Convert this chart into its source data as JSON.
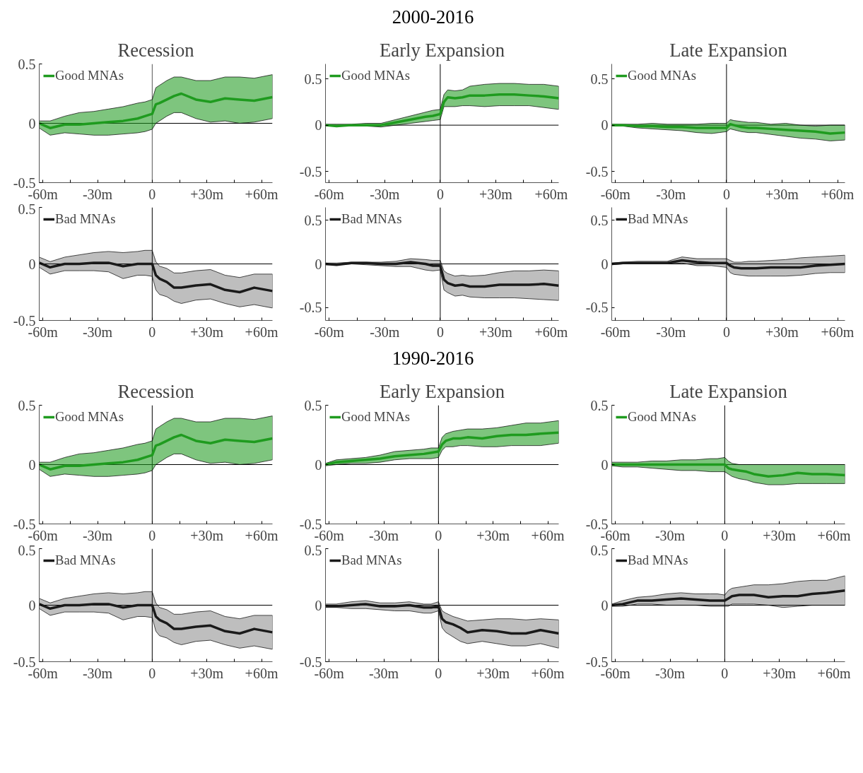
{
  "chart_data": [
    {
      "type": "line",
      "title": "Recession",
      "annotations": [
        "2000-2016"
      ],
      "x": [
        -62,
        -56,
        -48,
        -40,
        -32,
        -24,
        -16,
        -8,
        -4,
        0,
        2,
        4,
        8,
        12,
        16,
        24,
        32,
        40,
        48,
        56,
        66
      ],
      "xlim": [
        -62,
        66
      ],
      "ylim": [
        -0.5,
        0.5
      ],
      "xticks": [
        {
          "value": -60,
          "label": "-60m"
        },
        {
          "value": -45,
          "label": null
        },
        {
          "value": -30,
          "label": "-30m"
        },
        {
          "value": -15,
          "label": null
        },
        {
          "value": 0,
          "label": "0"
        },
        {
          "value": 15,
          "label": null
        },
        {
          "value": 30,
          "label": "+30m"
        },
        {
          "value": 45,
          "label": null
        },
        {
          "value": 60,
          "label": "+60m"
        }
      ],
      "yticks": [
        -0.5,
        0,
        0.5
      ],
      "grid": false,
      "legend": "top left",
      "ref_lines": [
        {
          "axis": "x",
          "value": 0,
          "color": "#555555"
        },
        {
          "axis": "y",
          "value": 0,
          "color": "#000000"
        }
      ],
      "series": [
        {
          "name": "Good MNAs",
          "color": "#1f9b1f",
          "values": [
            0,
            -0.04,
            -0.01,
            -0.01,
            0,
            0.01,
            0.02,
            0.04,
            0.06,
            0.08,
            0.16,
            0.17,
            0.2,
            0.23,
            0.25,
            0.2,
            0.18,
            0.21,
            0.2,
            0.19,
            0.22
          ],
          "lower": [
            -0.04,
            -0.1,
            -0.08,
            -0.09,
            -0.1,
            -0.1,
            -0.09,
            -0.08,
            -0.07,
            -0.05,
            0,
            0.02,
            0.06,
            0.09,
            0.09,
            0.04,
            0.01,
            0.02,
            0,
            0.01,
            0.04
          ],
          "upper": [
            0.02,
            0.02,
            0.06,
            0.09,
            0.1,
            0.12,
            0.14,
            0.17,
            0.18,
            0.2,
            0.3,
            0.32,
            0.36,
            0.39,
            0.39,
            0.36,
            0.36,
            0.39,
            0.39,
            0.38,
            0.41
          ]
        }
      ]
    },
    {
      "type": "line",
      "title": "Early Expansion",
      "x": [
        -62,
        -56,
        -48,
        -40,
        -32,
        -24,
        -16,
        -8,
        -4,
        0,
        2,
        4,
        8,
        12,
        16,
        24,
        32,
        40,
        48,
        56,
        64
      ],
      "xlim": [
        -62,
        64
      ],
      "ylim": [
        -0.62,
        0.66
      ],
      "xticks": [
        {
          "value": -60,
          "label": "-60m"
        },
        {
          "value": -45,
          "label": null
        },
        {
          "value": -30,
          "label": "-30m"
        },
        {
          "value": -15,
          "label": null
        },
        {
          "value": 0,
          "label": "0"
        },
        {
          "value": 15,
          "label": null
        },
        {
          "value": 30,
          "label": "+30m"
        },
        {
          "value": 45,
          "label": null
        },
        {
          "value": 60,
          "label": "+60m"
        }
      ],
      "yticks": [
        -0.5,
        0,
        0.5
      ],
      "grid": false,
      "legend": "top left",
      "ref_lines": [
        {
          "axis": "x",
          "value": 0
        },
        {
          "axis": "y",
          "value": 0
        }
      ],
      "series": [
        {
          "name": "Good MNAs",
          "color": "#1f9b1f",
          "values": [
            0,
            -0.01,
            0,
            0,
            0,
            0.03,
            0.06,
            0.09,
            0.1,
            0.12,
            0.25,
            0.3,
            0.29,
            0.3,
            0.32,
            0.32,
            0.33,
            0.33,
            0.32,
            0.31,
            0.29
          ],
          "lower": [
            -0.01,
            -0.01,
            -0.01,
            -0.01,
            -0.02,
            0,
            0.02,
            0.04,
            0.05,
            0.06,
            0.2,
            0.2,
            0.2,
            0.21,
            0.21,
            0.2,
            0.21,
            0.21,
            0.21,
            0.19,
            0.17
          ],
          "upper": [
            0.01,
            0.01,
            0.01,
            0.02,
            0.02,
            0.06,
            0.1,
            0.14,
            0.16,
            0.17,
            0.33,
            0.38,
            0.37,
            0.38,
            0.42,
            0.44,
            0.45,
            0.45,
            0.44,
            0.44,
            0.42
          ]
        }
      ]
    },
    {
      "type": "line",
      "title": "Late Expansion",
      "x": [
        -62,
        -56,
        -48,
        -40,
        -32,
        -24,
        -16,
        -8,
        -4,
        0,
        2,
        4,
        8,
        12,
        16,
        24,
        32,
        40,
        48,
        56,
        64
      ],
      "xlim": [
        -62,
        64
      ],
      "ylim": [
        -0.62,
        0.66
      ],
      "xticks": [
        {
          "value": -60,
          "label": "-60m"
        },
        {
          "value": -45,
          "label": null
        },
        {
          "value": -30,
          "label": "-30m"
        },
        {
          "value": -15,
          "label": null
        },
        {
          "value": 0,
          "label": "0"
        },
        {
          "value": 15,
          "label": null
        },
        {
          "value": 30,
          "label": "+30m"
        },
        {
          "value": 45,
          "label": null
        },
        {
          "value": 60,
          "label": "+60m"
        }
      ],
      "yticks": [
        -0.5,
        0,
        0.5
      ],
      "grid": false,
      "legend": "top left",
      "ref_lines": [
        {
          "axis": "x",
          "value": 0
        },
        {
          "axis": "y",
          "value": 0
        }
      ],
      "series": [
        {
          "name": "Good MNAs",
          "color": "#1f9b1f",
          "values": [
            0,
            0,
            -0.01,
            -0.01,
            -0.02,
            -0.02,
            -0.03,
            -0.03,
            -0.03,
            -0.03,
            0.01,
            0,
            -0.02,
            -0.03,
            -0.03,
            -0.04,
            -0.05,
            -0.06,
            -0.07,
            -0.09,
            -0.08
          ],
          "lower": [
            -0.01,
            -0.01,
            -0.03,
            -0.04,
            -0.05,
            -0.06,
            -0.08,
            -0.09,
            -0.08,
            -0.07,
            -0.04,
            -0.05,
            -0.07,
            -0.08,
            -0.08,
            -0.1,
            -0.12,
            -0.14,
            -0.15,
            -0.17,
            -0.16
          ],
          "upper": [
            0.01,
            0.01,
            0.01,
            0.02,
            0.01,
            0.01,
            0.01,
            0.02,
            0.02,
            0.02,
            0.06,
            0.05,
            0.04,
            0.03,
            0.03,
            0.01,
            0.02,
            0,
            -0.01,
            0,
            0
          ]
        }
      ]
    },
    {
      "type": "line",
      "x": [
        -62,
        -56,
        -48,
        -40,
        -32,
        -24,
        -16,
        -8,
        -4,
        0,
        2,
        4,
        8,
        12,
        16,
        24,
        32,
        40,
        48,
        56,
        66
      ],
      "xlim": [
        -62,
        66
      ],
      "ylim": [
        -0.5,
        0.5
      ],
      "xticks": [
        {
          "value": -60,
          "label": "-60m"
        },
        {
          "value": -45,
          "label": null
        },
        {
          "value": -30,
          "label": "-30m"
        },
        {
          "value": -15,
          "label": null
        },
        {
          "value": 0,
          "label": "0"
        },
        {
          "value": 15,
          "label": null
        },
        {
          "value": 30,
          "label": "+30m"
        },
        {
          "value": 45,
          "label": null
        },
        {
          "value": 60,
          "label": "+60m"
        }
      ],
      "yticks": [
        -0.5,
        0,
        0.5
      ],
      "grid": false,
      "legend": "top left",
      "ref_lines": [
        {
          "axis": "x",
          "value": 0
        },
        {
          "axis": "y",
          "value": 0
        }
      ],
      "series": [
        {
          "name": "Bad MNAs",
          "color": "#1a1a1a",
          "values": [
            0.01,
            -0.03,
            0,
            0,
            0.01,
            0.01,
            -0.02,
            0,
            0,
            0,
            -0.1,
            -0.13,
            -0.16,
            -0.21,
            -0.21,
            -0.19,
            -0.18,
            -0.23,
            -0.25,
            -0.21,
            -0.24
          ],
          "lower": [
            -0.03,
            -0.09,
            -0.06,
            -0.06,
            -0.06,
            -0.07,
            -0.13,
            -0.1,
            -0.1,
            -0.11,
            -0.23,
            -0.27,
            -0.29,
            -0.33,
            -0.35,
            -0.32,
            -0.31,
            -0.35,
            -0.38,
            -0.36,
            -0.39
          ],
          "upper": [
            0.06,
            0.02,
            0.06,
            0.08,
            0.1,
            0.11,
            0.1,
            0.11,
            0.12,
            0.12,
            0.02,
            -0.02,
            -0.04,
            -0.08,
            -0.08,
            -0.06,
            -0.05,
            -0.1,
            -0.12,
            -0.09,
            -0.09
          ]
        }
      ]
    },
    {
      "type": "line",
      "x": [
        -62,
        -56,
        -48,
        -40,
        -32,
        -24,
        -16,
        -8,
        -4,
        0,
        2,
        4,
        8,
        12,
        16,
        24,
        32,
        40,
        48,
        56,
        64
      ],
      "xlim": [
        -62,
        64
      ],
      "ylim": [
        -0.65,
        0.65
      ],
      "xticks": [
        {
          "value": -60,
          "label": "-60m"
        },
        {
          "value": -45,
          "label": null
        },
        {
          "value": -30,
          "label": "-30m"
        },
        {
          "value": -15,
          "label": null
        },
        {
          "value": 0,
          "label": "0"
        },
        {
          "value": 15,
          "label": null
        },
        {
          "value": 30,
          "label": "+30m"
        },
        {
          "value": 45,
          "label": null
        },
        {
          "value": 60,
          "label": "+60m"
        }
      ],
      "yticks": [
        -0.5,
        0,
        0.5
      ],
      "grid": false,
      "legend": "top left",
      "ref_lines": [
        {
          "axis": "x",
          "value": 0
        },
        {
          "axis": "y",
          "value": 0
        }
      ],
      "series": [
        {
          "name": "Bad MNAs",
          "color": "#1a1a1a",
          "values": [
            0,
            -0.01,
            0.01,
            0.01,
            0,
            0,
            0.02,
            0,
            -0.02,
            -0.02,
            -0.18,
            -0.22,
            -0.25,
            -0.24,
            -0.26,
            -0.26,
            -0.24,
            -0.24,
            -0.24,
            -0.23,
            -0.25
          ],
          "lower": [
            -0.01,
            -0.01,
            0,
            -0.01,
            -0.02,
            -0.03,
            -0.03,
            -0.07,
            -0.08,
            -0.07,
            -0.3,
            -0.33,
            -0.37,
            -0.36,
            -0.38,
            -0.39,
            -0.39,
            -0.39,
            -0.4,
            -0.41,
            -0.42
          ],
          "upper": [
            0.01,
            0.01,
            0.02,
            0.02,
            0.02,
            0.03,
            0.06,
            0.05,
            0.04,
            0.04,
            -0.08,
            -0.11,
            -0.14,
            -0.13,
            -0.14,
            -0.13,
            -0.1,
            -0.08,
            -0.08,
            -0.07,
            -0.08
          ]
        }
      ]
    },
    {
      "type": "line",
      "x": [
        -62,
        -56,
        -48,
        -40,
        -32,
        -24,
        -16,
        -8,
        -4,
        0,
        2,
        4,
        8,
        12,
        16,
        24,
        32,
        40,
        48,
        56,
        64
      ],
      "xlim": [
        -62,
        64
      ],
      "ylim": [
        -0.65,
        0.65
      ],
      "xticks": [
        {
          "value": -60,
          "label": "-60m"
        },
        {
          "value": -45,
          "label": null
        },
        {
          "value": -30,
          "label": "-30m"
        },
        {
          "value": -15,
          "label": null
        },
        {
          "value": 0,
          "label": "0"
        },
        {
          "value": 15,
          "label": null
        },
        {
          "value": 30,
          "label": "+30m"
        },
        {
          "value": 45,
          "label": null
        },
        {
          "value": 60,
          "label": "+60m"
        }
      ],
      "yticks": [
        -0.5,
        0,
        0.5
      ],
      "grid": false,
      "legend": "top left",
      "ref_lines": [
        {
          "axis": "x",
          "value": 0
        },
        {
          "axis": "y",
          "value": 0
        }
      ],
      "series": [
        {
          "name": "Bad MNAs",
          "color": "#1a1a1a",
          "values": [
            0,
            0.01,
            0.01,
            0.01,
            0.01,
            0.04,
            0.02,
            0.01,
            0.01,
            0.01,
            -0.02,
            -0.04,
            -0.05,
            -0.05,
            -0.05,
            -0.04,
            -0.04,
            -0.04,
            -0.02,
            -0.01,
            0
          ],
          "lower": [
            -0.01,
            0,
            0,
            0,
            0,
            0.01,
            -0.02,
            -0.02,
            -0.03,
            -0.04,
            -0.1,
            -0.12,
            -0.13,
            -0.14,
            -0.14,
            -0.14,
            -0.14,
            -0.13,
            -0.11,
            -0.1,
            -0.1
          ],
          "upper": [
            0.01,
            0.02,
            0.03,
            0.03,
            0.03,
            0.08,
            0.06,
            0.06,
            0.06,
            0.06,
            0.04,
            0.02,
            0.02,
            0.03,
            0.03,
            0.04,
            0.05,
            0.07,
            0.08,
            0.09,
            0.1
          ]
        }
      ]
    },
    {
      "type": "line",
      "title": "Recession",
      "annotations": [
        "1990-2016"
      ],
      "x": [
        -62,
        -56,
        -48,
        -40,
        -32,
        -24,
        -16,
        -8,
        -4,
        0,
        2,
        4,
        8,
        12,
        16,
        24,
        32,
        40,
        48,
        56,
        66
      ],
      "xlim": [
        -62,
        66
      ],
      "ylim": [
        -0.5,
        0.5
      ],
      "xticks": [
        {
          "value": -60,
          "label": "-60m"
        },
        {
          "value": -45,
          "label": null
        },
        {
          "value": -30,
          "label": "-30m"
        },
        {
          "value": -15,
          "label": null
        },
        {
          "value": 0,
          "label": "0"
        },
        {
          "value": 15,
          "label": null
        },
        {
          "value": 30,
          "label": "+30m"
        },
        {
          "value": 45,
          "label": null
        },
        {
          "value": 60,
          "label": "+60m"
        }
      ],
      "yticks": [
        -0.5,
        0,
        0.5
      ],
      "grid": false,
      "legend": "top left",
      "ref_lines": [
        {
          "axis": "x",
          "value": 0
        },
        {
          "axis": "y",
          "value": 0
        }
      ],
      "series": [
        {
          "name": "Good MNAs",
          "color": "#1f9b1f",
          "values": [
            0,
            -0.04,
            -0.01,
            -0.01,
            0,
            0.01,
            0.02,
            0.04,
            0.06,
            0.08,
            0.16,
            0.17,
            0.2,
            0.23,
            0.25,
            0.2,
            0.18,
            0.21,
            0.2,
            0.19,
            0.22
          ],
          "lower": [
            -0.04,
            -0.1,
            -0.08,
            -0.09,
            -0.1,
            -0.1,
            -0.09,
            -0.08,
            -0.07,
            -0.05,
            0,
            0.02,
            0.06,
            0.09,
            0.09,
            0.04,
            0.01,
            0.02,
            0,
            0.01,
            0.04
          ],
          "upper": [
            0.02,
            0.02,
            0.06,
            0.09,
            0.1,
            0.12,
            0.14,
            0.17,
            0.18,
            0.2,
            0.3,
            0.32,
            0.36,
            0.39,
            0.39,
            0.36,
            0.36,
            0.39,
            0.39,
            0.38,
            0.41
          ]
        }
      ]
    },
    {
      "type": "line",
      "title": "Early Expansion",
      "x": [
        -62,
        -56,
        -48,
        -40,
        -32,
        -24,
        -16,
        -8,
        -4,
        0,
        2,
        4,
        8,
        12,
        16,
        24,
        32,
        40,
        48,
        56,
        66
      ],
      "xlim": [
        -62,
        66
      ],
      "ylim": [
        -0.5,
        0.5
      ],
      "xticks": [
        {
          "value": -60,
          "label": "-60m"
        },
        {
          "value": -45,
          "label": null
        },
        {
          "value": -30,
          "label": "-30m"
        },
        {
          "value": -15,
          "label": null
        },
        {
          "value": 0,
          "label": "0"
        },
        {
          "value": 15,
          "label": null
        },
        {
          "value": 30,
          "label": "+30m"
        },
        {
          "value": 45,
          "label": null
        },
        {
          "value": 60,
          "label": "+60m"
        }
      ],
      "yticks": [
        -0.5,
        0,
        0.5
      ],
      "grid": false,
      "legend": "top left",
      "ref_lines": [
        {
          "axis": "x",
          "value": 0
        },
        {
          "axis": "y",
          "value": 0
        }
      ],
      "series": [
        {
          "name": "Good MNAs",
          "color": "#1f9b1f",
          "values": [
            0,
            0.02,
            0.03,
            0.04,
            0.05,
            0.07,
            0.08,
            0.09,
            0.1,
            0.11,
            0.17,
            0.2,
            0.22,
            0.22,
            0.23,
            0.22,
            0.24,
            0.25,
            0.25,
            0.26,
            0.27
          ],
          "lower": [
            -0.01,
            0,
            0.01,
            0.01,
            0.02,
            0.04,
            0.05,
            0.05,
            0.05,
            0.06,
            0.12,
            0.15,
            0.15,
            0.16,
            0.16,
            0.15,
            0.15,
            0.16,
            0.16,
            0.16,
            0.18
          ],
          "upper": [
            0.01,
            0.04,
            0.05,
            0.06,
            0.08,
            0.11,
            0.12,
            0.13,
            0.14,
            0.14,
            0.23,
            0.26,
            0.28,
            0.29,
            0.3,
            0.3,
            0.31,
            0.33,
            0.35,
            0.35,
            0.37
          ]
        }
      ]
    },
    {
      "type": "line",
      "title": "Late Expansion",
      "x": [
        -62,
        -56,
        -48,
        -40,
        -32,
        -24,
        -16,
        -8,
        -4,
        0,
        2,
        4,
        8,
        12,
        16,
        24,
        32,
        40,
        48,
        56,
        66
      ],
      "xlim": [
        -62,
        66
      ],
      "ylim": [
        -0.5,
        0.5
      ],
      "xticks": [
        {
          "value": -60,
          "label": "-60m"
        },
        {
          "value": -45,
          "label": null
        },
        {
          "value": -30,
          "label": "-30m"
        },
        {
          "value": -15,
          "label": null
        },
        {
          "value": 0,
          "label": "0"
        },
        {
          "value": 15,
          "label": null
        },
        {
          "value": 30,
          "label": "+30m"
        },
        {
          "value": 45,
          "label": null
        },
        {
          "value": 60,
          "label": "+60m"
        }
      ],
      "yticks": [
        -0.5,
        0,
        0.5
      ],
      "grid": false,
      "legend": "top left",
      "ref_lines": [
        {
          "axis": "x",
          "value": 0
        },
        {
          "axis": "y",
          "value": 0
        }
      ],
      "series": [
        {
          "name": "Good MNAs",
          "color": "#1f9b1f",
          "values": [
            0,
            0,
            0,
            0,
            0,
            0,
            0,
            0,
            0,
            0,
            -0.03,
            -0.04,
            -0.05,
            -0.06,
            -0.08,
            -0.1,
            -0.09,
            -0.07,
            -0.08,
            -0.08,
            -0.09
          ],
          "lower": [
            -0.01,
            -0.02,
            -0.02,
            -0.03,
            -0.04,
            -0.05,
            -0.05,
            -0.06,
            -0.06,
            -0.06,
            -0.08,
            -0.1,
            -0.12,
            -0.13,
            -0.15,
            -0.17,
            -0.17,
            -0.16,
            -0.16,
            -0.16,
            -0.16
          ],
          "upper": [
            0.02,
            0.02,
            0.02,
            0.03,
            0.03,
            0.04,
            0.04,
            0.05,
            0.05,
            0.06,
            0.03,
            0.01,
            0,
            0,
            0,
            0,
            0,
            0,
            0,
            0,
            0
          ]
        }
      ]
    },
    {
      "type": "line",
      "x": [
        -62,
        -56,
        -48,
        -40,
        -32,
        -24,
        -16,
        -8,
        -4,
        0,
        2,
        4,
        8,
        12,
        16,
        24,
        32,
        40,
        48,
        56,
        66
      ],
      "xlim": [
        -62,
        66
      ],
      "ylim": [
        -0.5,
        0.5
      ],
      "xticks": [
        {
          "value": -60,
          "label": "-60m"
        },
        {
          "value": -45,
          "label": null
        },
        {
          "value": -30,
          "label": "-30m"
        },
        {
          "value": -15,
          "label": null
        },
        {
          "value": 0,
          "label": "0"
        },
        {
          "value": 15,
          "label": null
        },
        {
          "value": 30,
          "label": "+30m"
        },
        {
          "value": 45,
          "label": null
        },
        {
          "value": 60,
          "label": "+60m"
        }
      ],
      "yticks": [
        -0.5,
        0,
        0.5
      ],
      "grid": false,
      "legend": "top left",
      "ref_lines": [
        {
          "axis": "x",
          "value": 0
        },
        {
          "axis": "y",
          "value": 0
        }
      ],
      "series": [
        {
          "name": "Bad MNAs",
          "color": "#1a1a1a",
          "values": [
            0.01,
            -0.03,
            0,
            0,
            0.01,
            0.01,
            -0.02,
            0,
            0,
            0,
            -0.1,
            -0.13,
            -0.16,
            -0.21,
            -0.21,
            -0.19,
            -0.18,
            -0.23,
            -0.25,
            -0.21,
            -0.24
          ],
          "lower": [
            -0.03,
            -0.09,
            -0.06,
            -0.06,
            -0.06,
            -0.07,
            -0.13,
            -0.1,
            -0.1,
            -0.11,
            -0.23,
            -0.27,
            -0.29,
            -0.33,
            -0.35,
            -0.32,
            -0.31,
            -0.35,
            -0.38,
            -0.36,
            -0.39
          ],
          "upper": [
            0.06,
            0.02,
            0.06,
            0.08,
            0.1,
            0.11,
            0.1,
            0.11,
            0.12,
            0.12,
            0.02,
            -0.02,
            -0.04,
            -0.08,
            -0.08,
            -0.06,
            -0.05,
            -0.1,
            -0.12,
            -0.09,
            -0.09
          ]
        }
      ]
    },
    {
      "type": "line",
      "x": [
        -62,
        -56,
        -48,
        -40,
        -32,
        -24,
        -16,
        -8,
        -4,
        0,
        2,
        4,
        8,
        12,
        16,
        24,
        32,
        40,
        48,
        56,
        66
      ],
      "xlim": [
        -62,
        66
      ],
      "ylim": [
        -0.5,
        0.5
      ],
      "xticks": [
        {
          "value": -60,
          "label": "-60m"
        },
        {
          "value": -45,
          "label": null
        },
        {
          "value": -30,
          "label": "-30m"
        },
        {
          "value": -15,
          "label": null
        },
        {
          "value": 0,
          "label": "0"
        },
        {
          "value": 15,
          "label": null
        },
        {
          "value": 30,
          "label": "+30m"
        },
        {
          "value": 45,
          "label": null
        },
        {
          "value": 60,
          "label": "+60m"
        }
      ],
      "yticks": [
        -0.5,
        0,
        0.5
      ],
      "grid": false,
      "legend": "top left",
      "ref_lines": [
        {
          "axis": "x",
          "value": 0
        },
        {
          "axis": "y",
          "value": 0
        }
      ],
      "series": [
        {
          "name": "Bad MNAs",
          "color": "#1a1a1a",
          "values": [
            -0.01,
            -0.01,
            0,
            0.01,
            -0.01,
            -0.01,
            0,
            -0.02,
            -0.02,
            -0.01,
            -0.12,
            -0.15,
            -0.17,
            -0.2,
            -0.24,
            -0.22,
            -0.23,
            -0.25,
            -0.25,
            -0.22,
            -0.25
          ],
          "lower": [
            -0.02,
            -0.02,
            -0.03,
            -0.03,
            -0.04,
            -0.05,
            -0.05,
            -0.07,
            -0.07,
            -0.05,
            -0.2,
            -0.24,
            -0.28,
            -0.32,
            -0.34,
            -0.32,
            -0.34,
            -0.36,
            -0.36,
            -0.34,
            -0.38
          ],
          "upper": [
            0.01,
            0.01,
            0.03,
            0.04,
            0.02,
            0.02,
            0.03,
            0.01,
            0.01,
            0.03,
            -0.05,
            -0.07,
            -0.1,
            -0.12,
            -0.14,
            -0.13,
            -0.12,
            -0.12,
            -0.13,
            -0.12,
            -0.13
          ]
        }
      ]
    },
    {
      "type": "line",
      "x": [
        -62,
        -56,
        -48,
        -40,
        -32,
        -24,
        -16,
        -8,
        -4,
        0,
        2,
        4,
        8,
        12,
        16,
        24,
        32,
        40,
        48,
        56,
        66
      ],
      "xlim": [
        -62,
        66
      ],
      "ylim": [
        -0.5,
        0.5
      ],
      "xticks": [
        {
          "value": -60,
          "label": "-60m"
        },
        {
          "value": -45,
          "label": null
        },
        {
          "value": -30,
          "label": "-30m"
        },
        {
          "value": -15,
          "label": null
        },
        {
          "value": 0,
          "label": "0"
        },
        {
          "value": 15,
          "label": null
        },
        {
          "value": 30,
          "label": "+30m"
        },
        {
          "value": 45,
          "label": null
        },
        {
          "value": 60,
          "label": "+60m"
        }
      ],
      "yticks": [
        -0.5,
        0,
        0.5
      ],
      "grid": false,
      "legend": "top left",
      "ref_lines": [
        {
          "axis": "x",
          "value": 0
        },
        {
          "axis": "y",
          "value": 0
        }
      ],
      "series": [
        {
          "name": "Bad MNAs",
          "color": "#1a1a1a",
          "values": [
            0,
            0.01,
            0.04,
            0.04,
            0.05,
            0.06,
            0.05,
            0.04,
            0.04,
            0.04,
            0.06,
            0.08,
            0.09,
            0.09,
            0.09,
            0.07,
            0.08,
            0.08,
            0.1,
            0.11,
            0.13
          ],
          "lower": [
            -0.01,
            -0.01,
            0.01,
            0.01,
            0,
            0,
            0,
            -0.01,
            -0.01,
            -0.01,
            -0.01,
            0.01,
            0.01,
            0.01,
            0.01,
            0,
            -0.02,
            -0.01,
            0,
            0,
            0
          ],
          "upper": [
            0.01,
            0.04,
            0.07,
            0.08,
            0.1,
            0.11,
            0.1,
            0.1,
            0.1,
            0.09,
            0.13,
            0.15,
            0.16,
            0.17,
            0.18,
            0.18,
            0.19,
            0.21,
            0.22,
            0.22,
            0.26
          ]
        }
      ]
    }
  ]
}
